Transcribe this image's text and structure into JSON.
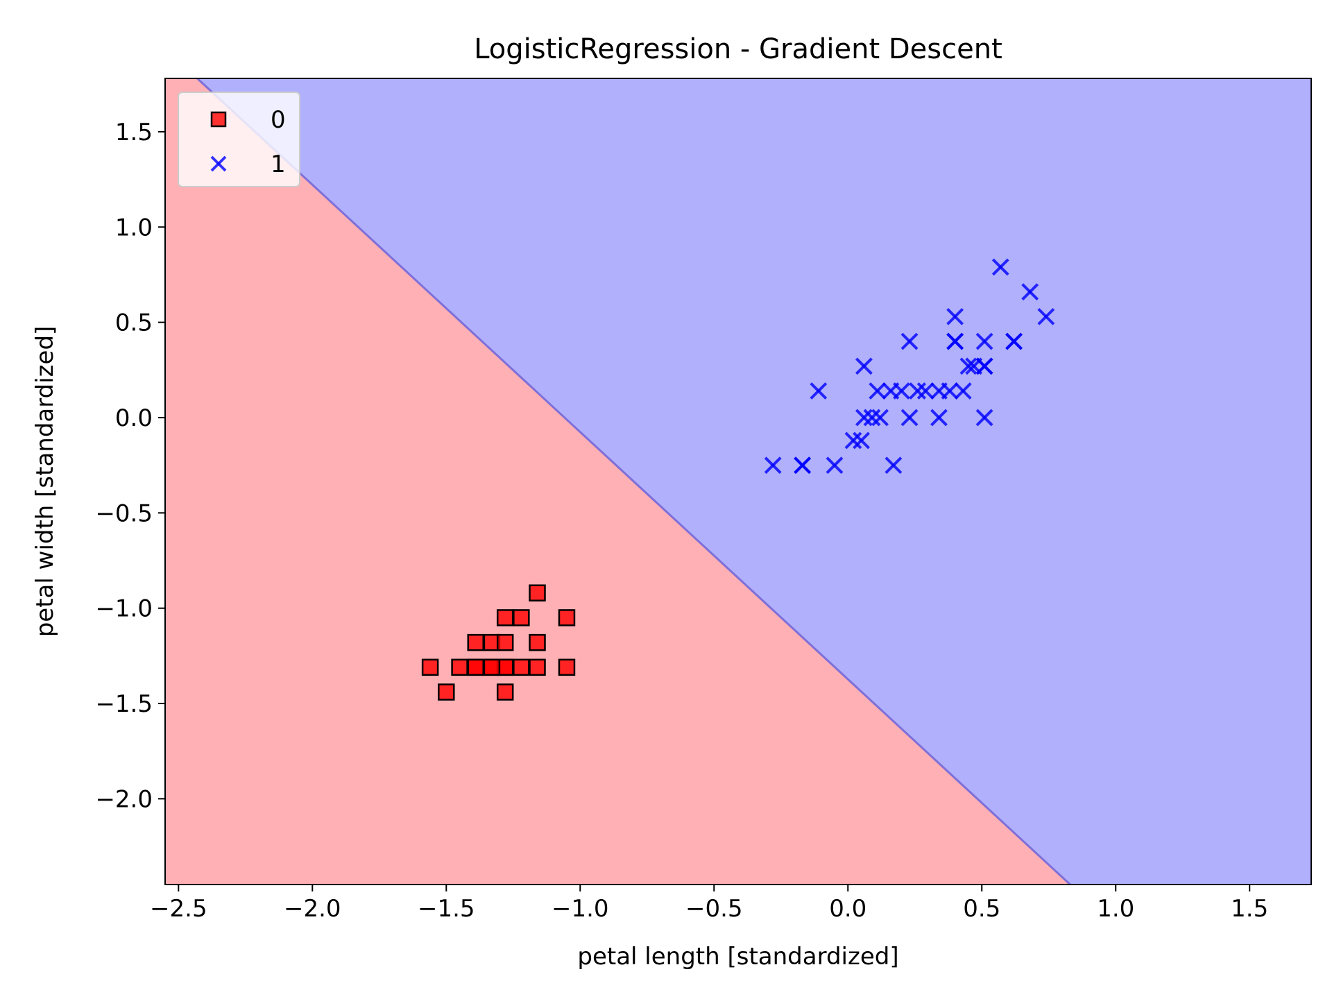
{
  "chart_data": {
    "type": "scatter",
    "title": "LogisticRegression - Gradient Descent",
    "xlabel": "petal length [standardized]",
    "ylabel": "petal width [standardized]",
    "xlim": [
      -2.55,
      1.73
    ],
    "ylim": [
      -2.45,
      1.78
    ],
    "xticks": [
      -2.5,
      -2.0,
      -1.5,
      -1.0,
      -0.5,
      0.0,
      0.5,
      1.0,
      1.5
    ],
    "xtick_labels": [
      "−2.5",
      "−2.0",
      "−1.5",
      "−1.0",
      "−0.5",
      "0.0",
      "0.5",
      "1.0",
      "1.5"
    ],
    "yticks": [
      1.5,
      1.0,
      0.5,
      0.0,
      -0.5,
      -1.0,
      -1.5,
      -2.0
    ],
    "ytick_labels": [
      "1.5",
      "1.0",
      "0.5",
      "0.0",
      "−0.5",
      "−1.0",
      "−1.5",
      "−2.0"
    ],
    "grid": false,
    "legend_position": "top-left",
    "decision_boundary": {
      "points": [
        [
          -2.43,
          1.78
        ],
        [
          0.83,
          -2.45
        ]
      ],
      "region_class_0_color": "#ffb0b4",
      "region_class_1_color": "#b0b0fd",
      "boundary_color": "#7f6fd8"
    },
    "series": [
      {
        "name": "0",
        "marker": "square",
        "color": "#ff0000",
        "edge_color": "#000000",
        "x": [
          -1.56,
          -1.5,
          -1.45,
          -1.39,
          -1.39,
          -1.33,
          -1.33,
          -1.28,
          -1.28,
          -1.28,
          -1.28,
          -1.28,
          -1.22,
          -1.22,
          -1.16,
          -1.16,
          -1.16,
          -1.05,
          -1.05,
          -1.39,
          -1.33
        ],
        "y": [
          -1.31,
          -1.44,
          -1.31,
          -1.31,
          -1.18,
          -1.31,
          -1.18,
          -1.44,
          -1.31,
          -1.18,
          -1.05,
          -1.31,
          -1.31,
          -1.05,
          -1.31,
          -1.18,
          -0.92,
          -1.31,
          -1.05,
          -1.31,
          -1.31
        ]
      },
      {
        "name": "1",
        "marker": "x",
        "color": "#0000ff",
        "x": [
          -0.28,
          -0.17,
          -0.17,
          -0.11,
          -0.05,
          0.02,
          0.05,
          0.06,
          0.06,
          0.09,
          0.11,
          0.12,
          0.16,
          0.17,
          0.2,
          0.23,
          0.23,
          0.26,
          0.29,
          0.34,
          0.34,
          0.38,
          0.4,
          0.4,
          0.4,
          0.43,
          0.45,
          0.47,
          0.51,
          0.51,
          0.51,
          0.51,
          0.57,
          0.62,
          0.62,
          0.68,
          0.74
        ],
        "y": [
          -0.25,
          -0.25,
          -0.25,
          0.14,
          -0.25,
          -0.12,
          -0.12,
          0.0,
          0.27,
          0.0,
          0.14,
          0.0,
          0.14,
          -0.25,
          0.14,
          0.0,
          0.4,
          0.14,
          0.14,
          0.0,
          0.14,
          0.14,
          0.4,
          0.4,
          0.53,
          0.14,
          0.27,
          0.27,
          0.0,
          0.27,
          0.27,
          0.4,
          0.79,
          0.4,
          0.4,
          0.66,
          0.53
        ]
      }
    ]
  }
}
